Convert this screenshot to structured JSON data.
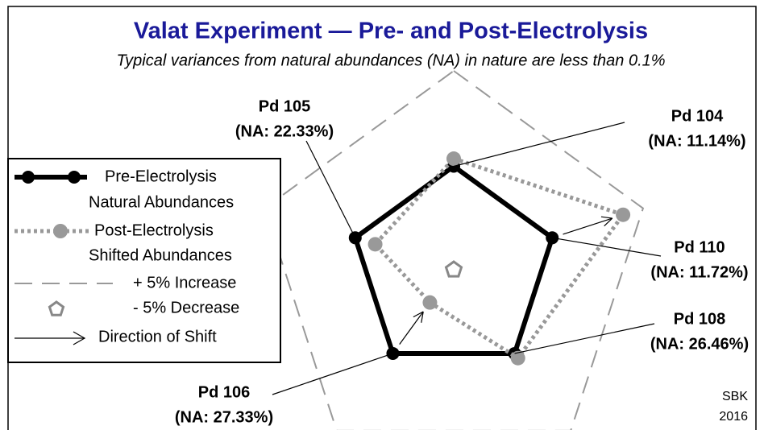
{
  "chart_data": {
    "type": "radar",
    "title": "Valat Experiment — Pre- and Post-Electrolysis",
    "subtitle": "Typical variances from natural abundances (NA) in nature are less than 0.1%",
    "categories": [
      "Pd 104",
      "Pd 110",
      "Pd 108",
      "Pd 106",
      "Pd 105"
    ],
    "category_notes": [
      "(NA: 11.14%)",
      "(NA: 11.72%)",
      "(NA: 26.46%)",
      "(NA: 27.33%)",
      "(NA: 22.33%)"
    ],
    "rlim": [
      -5,
      5
    ],
    "series": [
      {
        "name": "Pre-Electrolysis",
        "name2": "Natural Abundances",
        "color": "#000000",
        "values": [
          0,
          0,
          0,
          0,
          0
        ]
      },
      {
        "name": "Post-Electrolysis",
        "name2": "Shifted Abundances",
        "color": "#999999",
        "values": [
          0.4,
          3.9,
          0.3,
          -3.3,
          -1.1
        ]
      }
    ],
    "legend_extra": [
      "+ 5% Increase",
      "- 5% Decrease",
      "Direction of Shift"
    ],
    "credit": [
      "SBK",
      "2016"
    ]
  }
}
